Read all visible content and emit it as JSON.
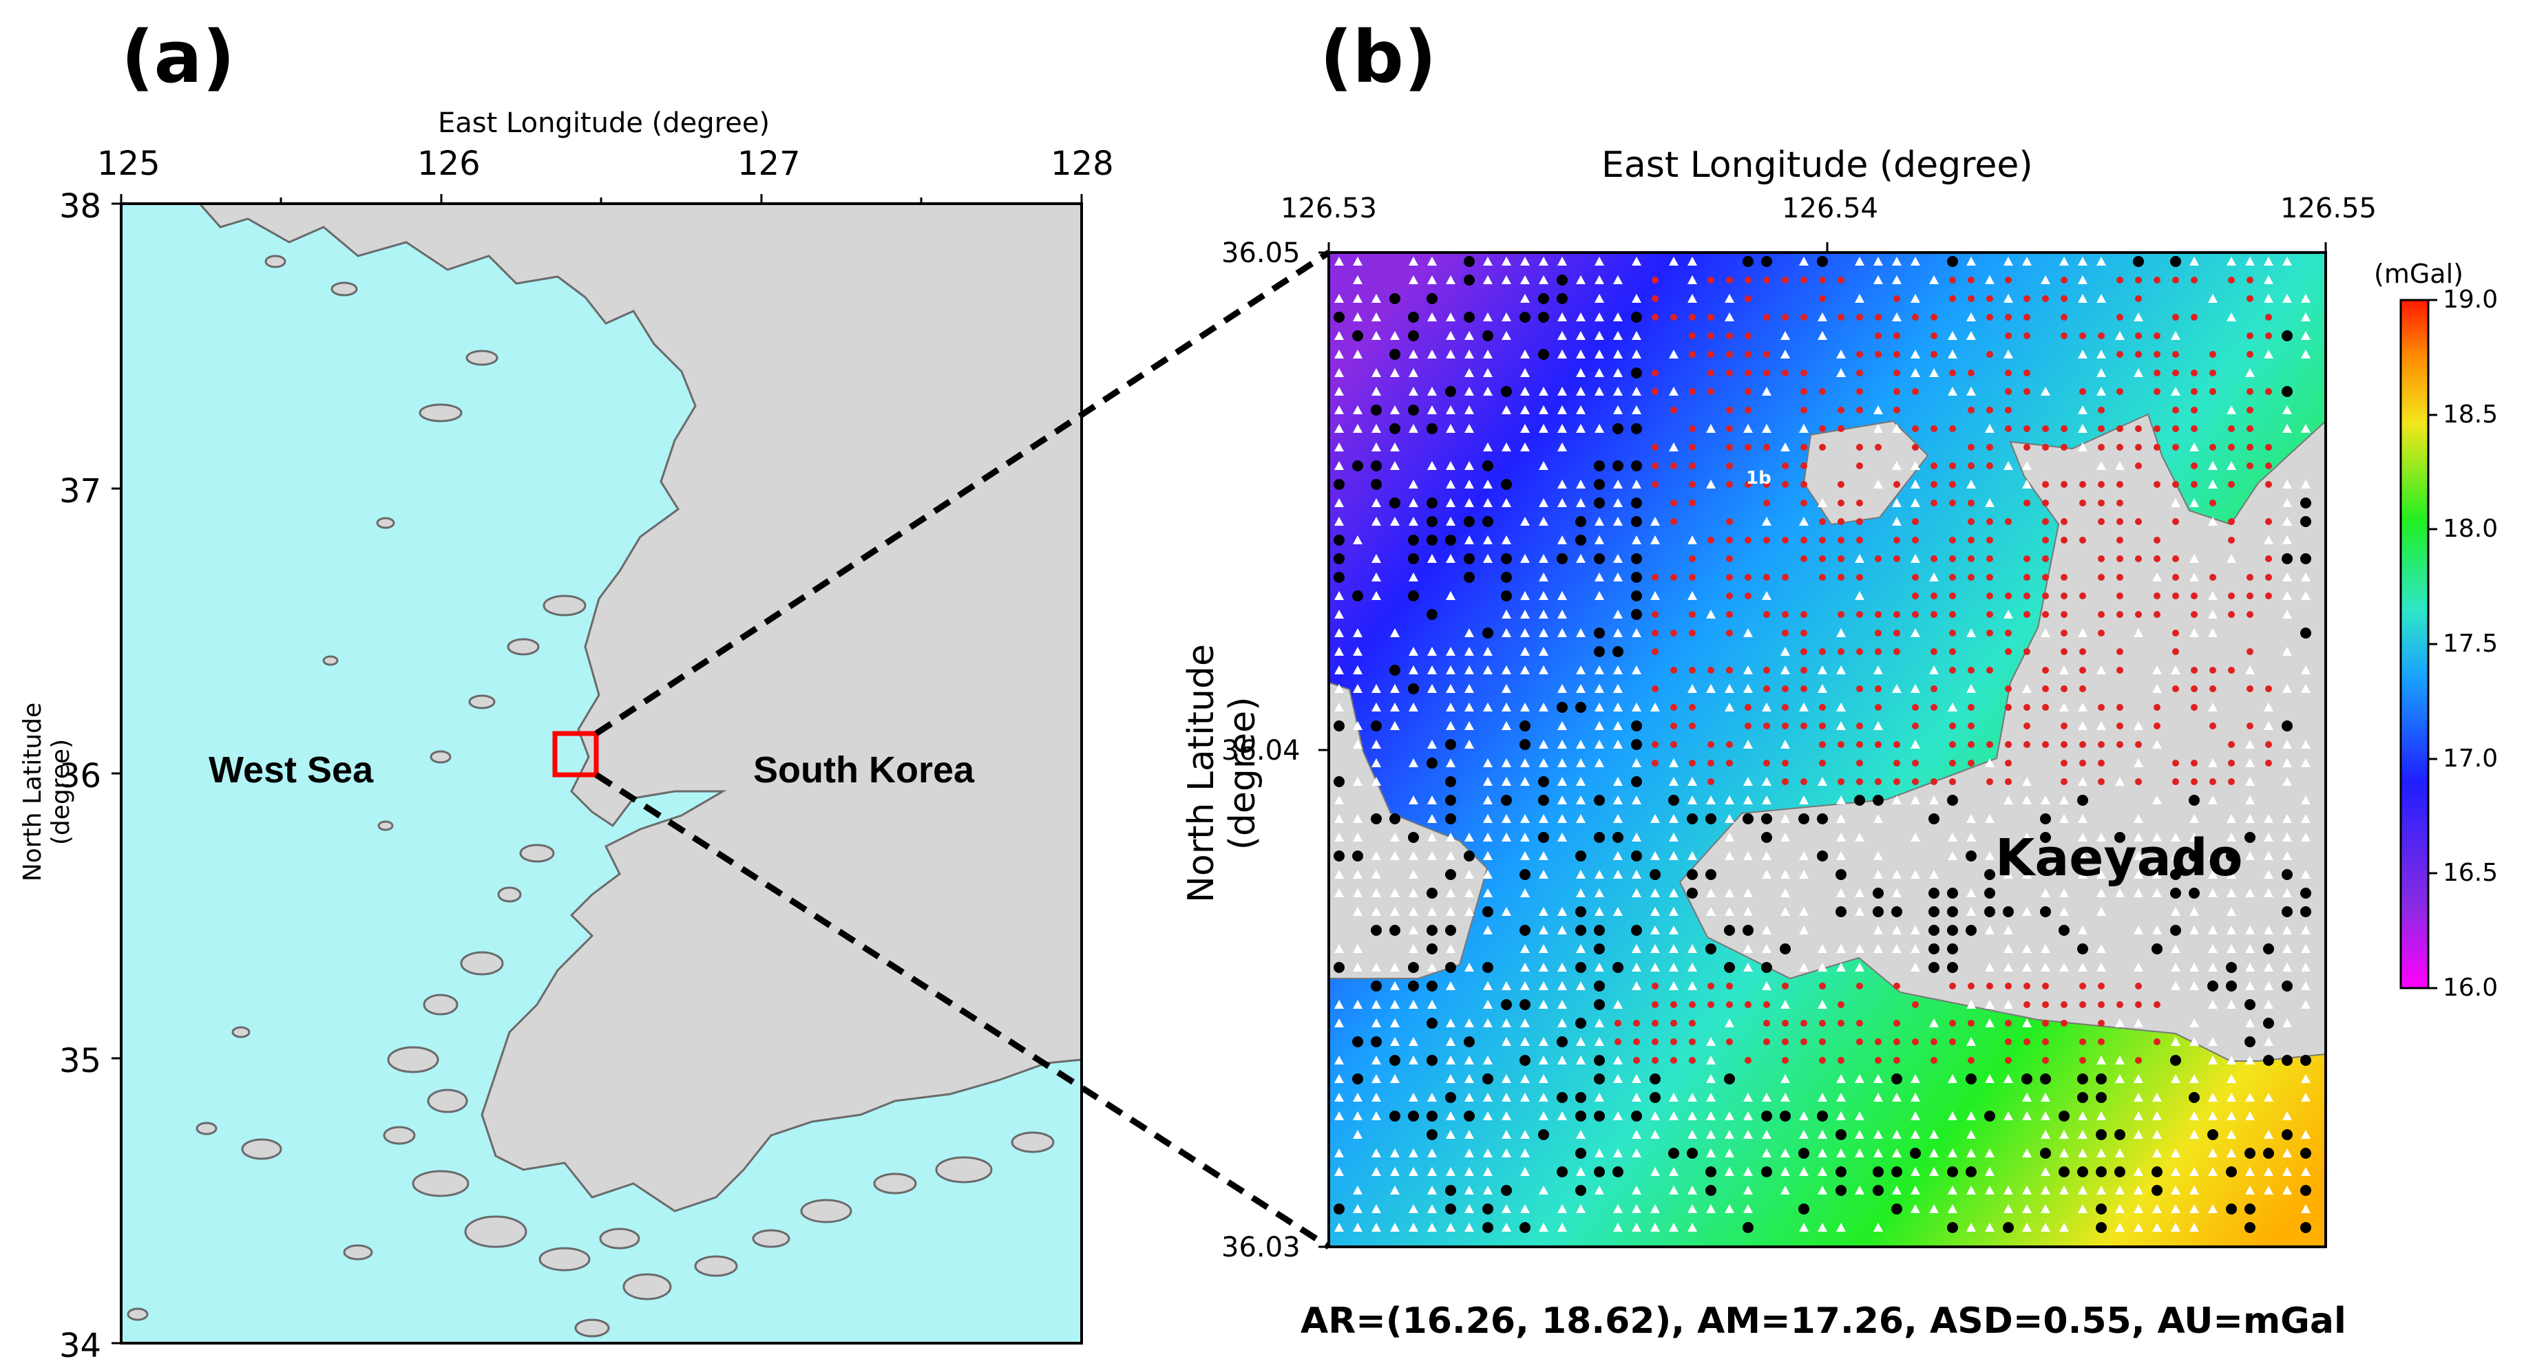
{
  "panel_a": {
    "label": "(a)",
    "x_axis_title": "East Longitude (degree)",
    "y_axis_title": "North Latitude (degree)",
    "x_ticks": [
      "125",
      "126",
      "127",
      "128"
    ],
    "y_ticks": [
      "38",
      "37",
      "36",
      "35",
      "34"
    ],
    "sea_label": "West Sea",
    "land_label": "South Korea",
    "sea_color": "#b0f4f6",
    "land_color": "#d6d6d6"
  },
  "panel_b": {
    "label": "(b)",
    "x_axis_title": "East Longitude (degree)",
    "y_axis_title": "North Latitude (degree)",
    "x_ticks": [
      "126.53",
      "126.54",
      "126.55"
    ],
    "y_ticks": [
      "36.05",
      "36.04",
      "36.03"
    ],
    "island_label": "Kaeyado",
    "point_label": "1b",
    "stats": "AR=(16.26, 18.62), AM=17.26, ASD=0.55, AU=mGal"
  },
  "colorbar": {
    "unit": "(mGal)",
    "ticks": [
      "19.0",
      "18.5",
      "18.0",
      "17.5",
      "17.0",
      "16.5",
      "16.0"
    ],
    "colors": [
      "#ff00ff",
      "#8a2be2",
      "#1f1fff",
      "#1aa0ff",
      "#2ee6c8",
      "#22ee22",
      "#f2e61c",
      "#ff8a00",
      "#ff1a00"
    ]
  }
}
